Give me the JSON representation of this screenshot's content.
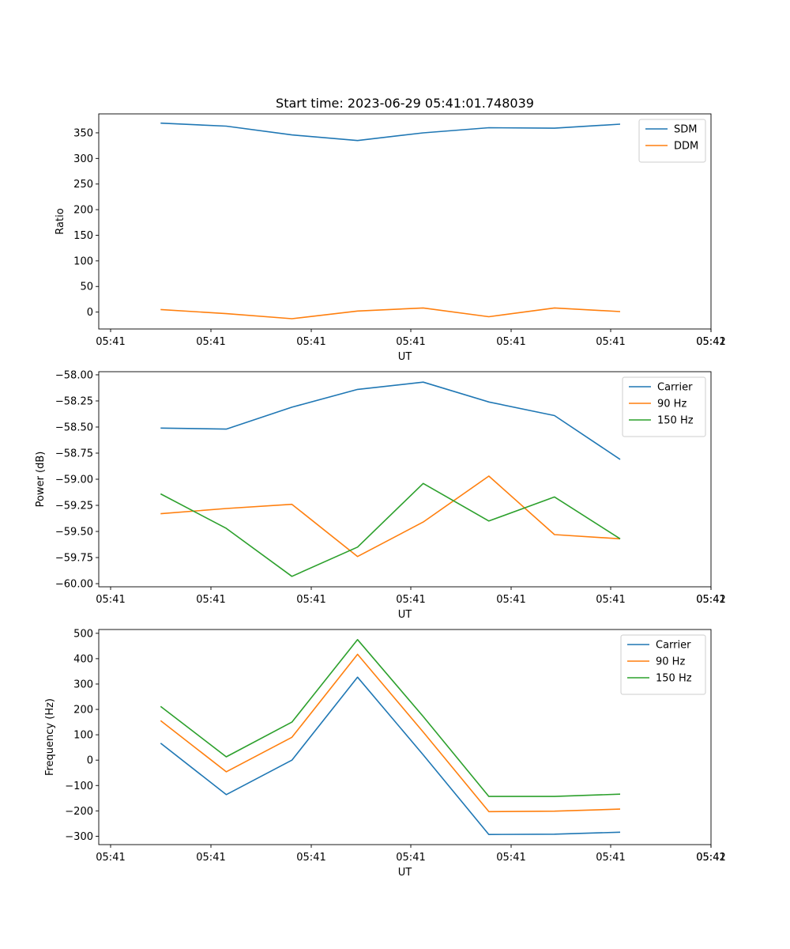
{
  "chart_data": [
    {
      "type": "line",
      "title": "Start time: 2023-06-29 05:41:01.748039",
      "xlabel": "UT",
      "ylabel": "Ratio",
      "x_tick_labels": [
        "05:41",
        "05:41",
        "05:41",
        "05:41",
        "05:41",
        "05:41",
        "05:41",
        "05:42"
      ],
      "y_ticks": [
        "0",
        "50",
        "100",
        "150",
        "200",
        "250",
        "300",
        "350"
      ],
      "ylim": [
        -33,
        387
      ],
      "legend_position": "top-right",
      "grid": false,
      "series": [
        {
          "name": "SDM",
          "color": "#1f77b4",
          "values": [
            369,
            363,
            346,
            335,
            350,
            360,
            359,
            367
          ]
        },
        {
          "name": "DDM",
          "color": "#ff7f0e",
          "values": [
            5,
            -3,
            -13,
            2,
            8,
            -9,
            8,
            1
          ]
        }
      ]
    },
    {
      "type": "line",
      "title": "",
      "xlabel": "UT",
      "ylabel": "Power (dB)",
      "x_tick_labels": [
        "05:41",
        "05:41",
        "05:41",
        "05:41",
        "05:41",
        "05:41",
        "05:41",
        "05:42"
      ],
      "y_ticks": [
        "−60.00",
        "−59.75",
        "−59.50",
        "−59.25",
        "−59.00",
        "−58.75",
        "−58.50",
        "−58.25",
        "−58.00"
      ],
      "ylim": [
        -60.03,
        -57.97
      ],
      "legend_position": "top-right",
      "grid": false,
      "series": [
        {
          "name": "Carrier",
          "color": "#1f77b4",
          "values": [
            -58.51,
            -58.52,
            -58.31,
            -58.14,
            -58.07,
            -58.26,
            -58.39,
            -58.81
          ]
        },
        {
          "name": "90 Hz",
          "color": "#ff7f0e",
          "values": [
            -59.33,
            -59.28,
            -59.24,
            -59.74,
            -59.41,
            -58.97,
            -59.53,
            -59.57
          ]
        },
        {
          "name": "150 Hz",
          "color": "#2ca02c",
          "values": [
            -59.14,
            -59.47,
            -59.93,
            -59.65,
            -59.04,
            -59.4,
            -59.17,
            -59.57
          ]
        }
      ]
    },
    {
      "type": "line",
      "title": "",
      "xlabel": "UT",
      "ylabel": "Frequency (Hz)",
      "x_tick_labels": [
        "05:41",
        "05:41",
        "05:41",
        "05:41",
        "05:41",
        "05:41",
        "05:41",
        "05:42"
      ],
      "y_ticks": [
        "−300",
        "−200",
        "−100",
        "0",
        "100",
        "200",
        "300",
        "400",
        "500"
      ],
      "ylim": [
        -333,
        515
      ],
      "legend_position": "top-right",
      "grid": false,
      "series": [
        {
          "name": "Carrier",
          "color": "#1f77b4",
          "values": [
            67,
            -136,
            0,
            327,
            21,
            -293,
            -292,
            -284
          ]
        },
        {
          "name": "90 Hz",
          "color": "#ff7f0e",
          "values": [
            156,
            -46,
            90,
            417,
            111,
            -203,
            -201,
            -193
          ]
        },
        {
          "name": "150 Hz",
          "color": "#2ca02c",
          "values": [
            212,
            13,
            150,
            475,
            172,
            -143,
            -143,
            -134
          ]
        }
      ]
    }
  ]
}
